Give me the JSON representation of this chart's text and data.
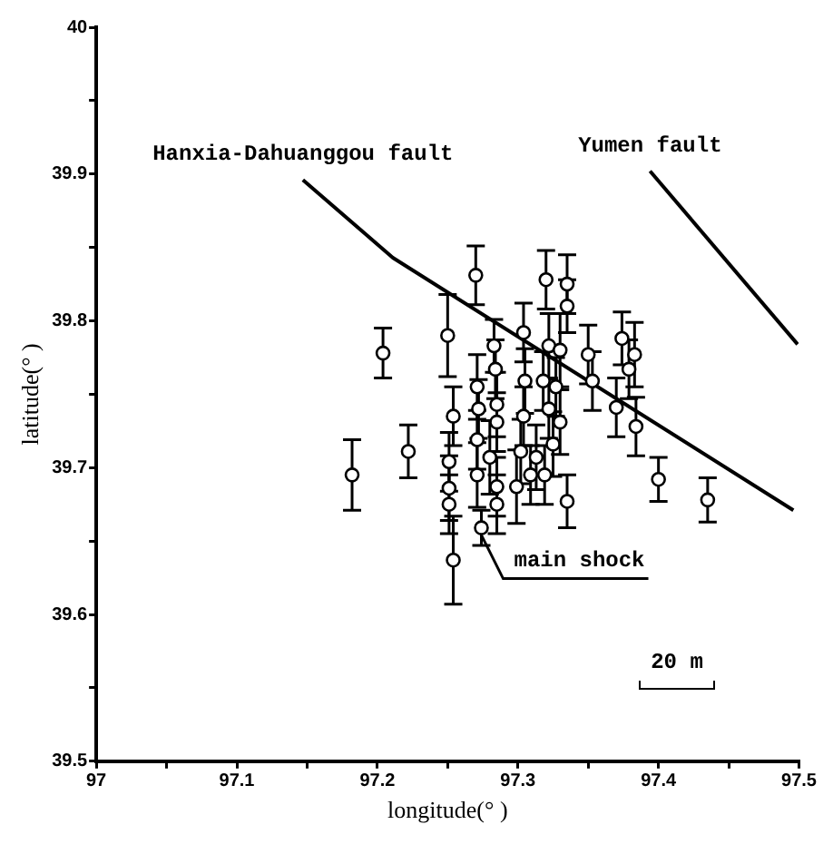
{
  "chart_data": {
    "type": "scatter",
    "xlabel": "longitude(° )",
    "ylabel": "latitude(° )",
    "xlim": [
      97,
      97.5
    ],
    "ylim": [
      39.5,
      40
    ],
    "xticks": [
      97,
      {
        "value": 97.05,
        "label": null
      },
      97.1,
      {
        "value": 97.15,
        "label": null
      },
      97.2,
      {
        "value": 97.25,
        "label": null
      },
      97.3,
      {
        "value": 97.35,
        "label": null
      },
      97.4,
      {
        "value": 97.45,
        "label": null
      },
      97.5
    ],
    "yticks": [
      39.5,
      {
        "value": 39.55,
        "label": null
      },
      39.6,
      {
        "value": 39.65,
        "label": null
      },
      39.7,
      {
        "value": 39.75,
        "label": null
      },
      39.8,
      {
        "value": 39.85,
        "label": null
      },
      39.9,
      {
        "value": 39.95,
        "label": null
      },
      40
    ],
    "grid": false,
    "legend": false,
    "annotations": [
      {
        "text": "main shock",
        "x": 97.274,
        "y": 39.659
      },
      "20 m"
    ],
    "series": [
      {
        "color": "#000000",
        "marker": "circle",
        "x": [
          97.182,
          97.204,
          97.222,
          97.25,
          97.254,
          97.254,
          97.251,
          97.251,
          97.251,
          97.27,
          97.271,
          97.272,
          97.271,
          97.271,
          97.283,
          97.284,
          97.285,
          97.285,
          97.28,
          97.285,
          97.285,
          97.304,
          97.305,
          97.304,
          97.302,
          97.299,
          97.32,
          97.322,
          97.318,
          97.322,
          97.325,
          97.319,
          97.335,
          97.335,
          97.33,
          97.327,
          97.33,
          97.313,
          97.309,
          97.335,
          97.35,
          97.353,
          97.37,
          97.374,
          97.383,
          97.379,
          97.384,
          97.4,
          97.435,
          97.274
        ],
        "values": [
          39.695,
          39.778,
          39.711,
          39.79,
          39.735,
          39.637,
          39.686,
          39.675,
          39.704,
          39.831,
          39.755,
          39.74,
          39.719,
          39.695,
          39.783,
          39.767,
          39.743,
          39.731,
          39.707,
          39.687,
          39.675,
          39.792,
          39.759,
          39.735,
          39.711,
          39.687,
          39.828,
          39.783,
          39.759,
          39.74,
          39.716,
          39.695,
          39.825,
          39.81,
          39.78,
          39.755,
          39.731,
          39.707,
          39.695,
          39.677,
          39.777,
          39.759,
          39.741,
          39.788,
          39.777,
          39.767,
          39.728,
          39.692,
          39.678,
          39.659
        ],
        "errors": [
          0.024,
          0.017,
          0.018,
          0.028,
          0.02,
          0.03,
          0.022,
          0.02,
          0.02,
          0.02,
          0.022,
          0.02,
          0.02,
          0.022,
          0.018,
          0.02,
          0.022,
          0.02,
          0.025,
          0.02,
          0.02,
          0.02,
          0.022,
          0.02,
          0.022,
          0.025,
          0.02,
          0.022,
          0.02,
          0.02,
          0.022,
          0.02,
          0.02,
          0.018,
          0.025,
          0.02,
          0.022,
          0.022,
          0.02,
          0.018,
          0.02,
          0.02,
          0.02,
          0.018,
          0.022,
          0.02,
          0.02,
          0.015,
          0.015,
          0.012
        ]
      },
      {
        "type": "line",
        "name": "Hanxia-Dahuanggou fault",
        "color": "#000000",
        "marker": "none",
        "x": [
          97.147,
          97.211,
          97.496
        ],
        "values": [
          39.896,
          39.843,
          39.671
        ]
      },
      {
        "type": "line",
        "name": "Yumen fault",
        "color": "#000000",
        "marker": "none",
        "x": [
          97.394,
          97.499
        ],
        "values": [
          39.902,
          39.784
        ]
      }
    ]
  }
}
